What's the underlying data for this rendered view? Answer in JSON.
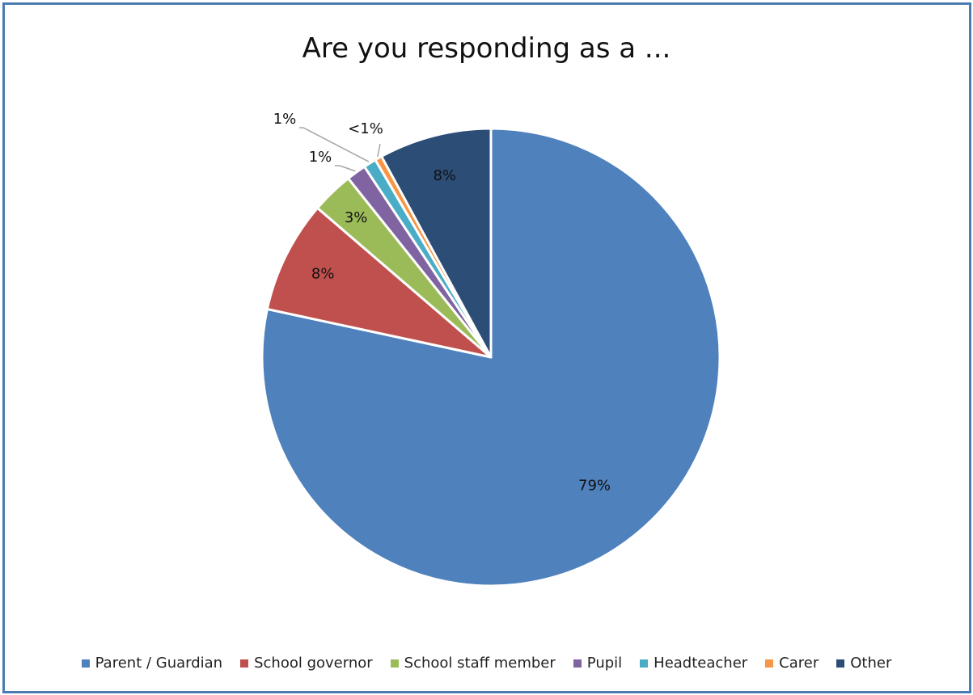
{
  "chart_data": {
    "type": "pie",
    "title": "Are you responding as a ...",
    "legend_position": "bottom",
    "slices": [
      {
        "name": "Parent / Guardian",
        "value": 79,
        "label": "79%",
        "color": "#4f81bd"
      },
      {
        "name": "School governor",
        "value": 8,
        "label": "8%",
        "color": "#c0504d"
      },
      {
        "name": "School staff member",
        "value": 3,
        "label": "3%",
        "color": "#9bbb59"
      },
      {
        "name": "Pupil",
        "value": 1.4,
        "label": "1%",
        "color": "#8064a2"
      },
      {
        "name": "Headteacher",
        "value": 0.9,
        "label": "1%",
        "color": "#4bacc6"
      },
      {
        "name": "Carer",
        "value": 0.5,
        "label": "<1%",
        "color": "#f79646"
      },
      {
        "name": "Other",
        "value": 8,
        "label": "8%",
        "color": "#2c4d75"
      }
    ]
  }
}
